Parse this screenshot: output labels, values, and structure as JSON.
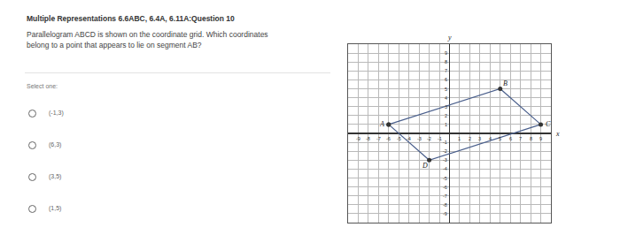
{
  "header": {
    "title": "Multiple Representations 6.6ABC, 6.4A, 6.11A:Question 10"
  },
  "question": "Parallelogram ABCD is shown on the coordinate grid. Which coordinates belong to a point that appears to lie on segment AB?",
  "prompt": "Select one:",
  "options": [
    "(-1,3)",
    "(6,3)",
    "(3,5)",
    "(1,5)"
  ],
  "chart_data": {
    "type": "scatter",
    "xlabel": "x",
    "ylabel": "y",
    "points": [
      {
        "name": "A",
        "x": -6,
        "y": 1
      },
      {
        "name": "B",
        "x": 5,
        "y": 5
      },
      {
        "name": "C",
        "x": 9,
        "y": 1
      },
      {
        "name": "D",
        "x": -2,
        "y": -3
      }
    ],
    "color": "#4a5f8c",
    "marker": "circle",
    "xlim": [
      -10,
      10
    ],
    "ylim": [
      -10,
      10
    ],
    "xticks": [
      -9,
      -8,
      -7,
      -6,
      -5,
      -4,
      -3,
      -2,
      -1,
      1,
      2,
      3,
      4,
      5,
      6,
      7,
      8,
      9
    ],
    "yticks": [
      -9,
      -8,
      -7,
      -6,
      -5,
      -4,
      -3,
      -2,
      -1,
      1,
      2,
      3,
      4,
      5,
      6,
      7,
      8,
      9
    ],
    "grid": true
  }
}
